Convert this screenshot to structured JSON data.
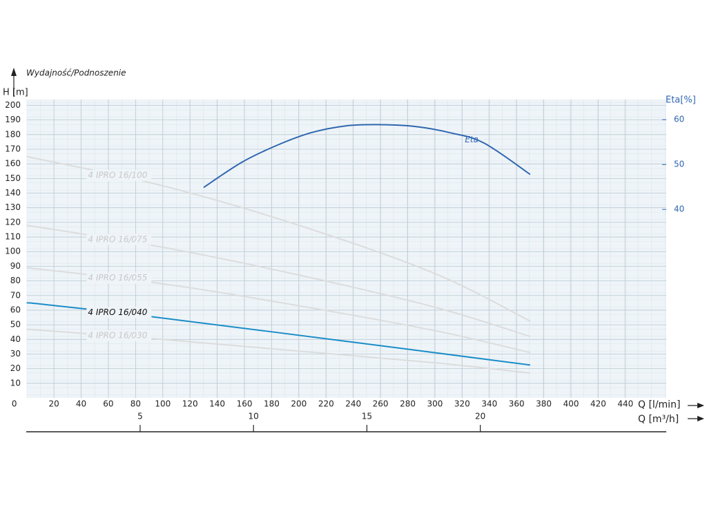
{
  "chart_data": {
    "type": "line",
    "title": "Wydajność/Podnoszenie",
    "y_label": "H [m]",
    "y2_label": "Eta[%]",
    "x_label": "Q [l/min]",
    "x2_label": "Q [m³/h]",
    "xlim": [
      0,
      470
    ],
    "xticks": [
      0,
      20,
      40,
      60,
      80,
      100,
      120,
      140,
      160,
      180,
      200,
      220,
      240,
      260,
      280,
      300,
      320,
      340,
      360,
      380,
      400,
      420,
      440
    ],
    "x2lim": [
      0,
      28.2
    ],
    "x2ticks": [
      5,
      10,
      15,
      20
    ],
    "ylim": [
      0,
      204
    ],
    "yticks": [
      10,
      20,
      30,
      40,
      50,
      60,
      70,
      80,
      90,
      100,
      110,
      120,
      130,
      140,
      150,
      160,
      170,
      180,
      190,
      200
    ],
    "y2lim": [
      -2,
      64.5
    ],
    "y2ticks": [
      40,
      50,
      60
    ],
    "grid": true,
    "series": [
      {
        "name": "4 IPRO 16/100",
        "color": "#dcdcdc",
        "x": [
          0,
          100,
          200,
          300,
          370
        ],
        "values": [
          165,
          145,
          118,
          85,
          52.5
        ]
      },
      {
        "name": "4 IPRO 16/075",
        "color": "#dcdcdc",
        "x": [
          0,
          100,
          200,
          300,
          370
        ],
        "values": [
          118,
          103,
          84,
          62,
          42
        ]
      },
      {
        "name": "4 IPRO 16/055",
        "color": "#dcdcdc",
        "x": [
          0,
          100,
          200,
          300,
          370
        ],
        "values": [
          89,
          78,
          63,
          46,
          31
        ]
      },
      {
        "name": "4 IPRO 16/040",
        "color": "#1a8cc8",
        "x": [
          0,
          12,
          85,
          234,
          370
        ],
        "values": [
          65,
          64,
          56.3,
          38.8,
          22.5
        ]
      },
      {
        "name": "4 IPRO 16/030",
        "color": "#dcdcdc",
        "x": [
          0,
          100,
          200,
          300,
          370
        ],
        "values": [
          47,
          40,
          32,
          24,
          17
        ]
      },
      {
        "name": "Eta",
        "color": "#2f66b0",
        "axis": "y2",
        "x": [
          130,
          158,
          184,
          209,
          234,
          257,
          285,
          311,
          336,
          370
        ],
        "values": [
          44.9,
          50.5,
          54.3,
          57.1,
          58.6,
          58.9,
          58.5,
          57.1,
          54.8,
          47.8
        ]
      }
    ]
  }
}
